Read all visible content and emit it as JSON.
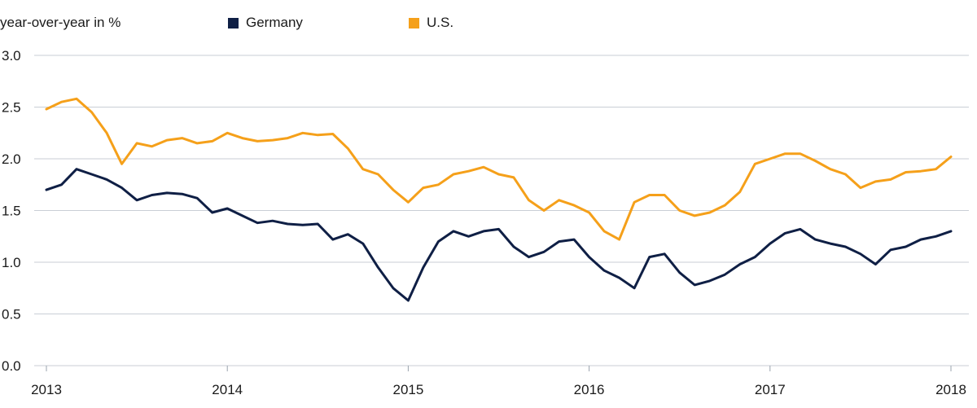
{
  "chart_data": {
    "type": "line",
    "ylabel": "year-over-year in %",
    "ylim": [
      0,
      3
    ],
    "yticks": [
      "0.0",
      "0.5",
      "1.0",
      "1.5",
      "2.0",
      "2.5",
      "3.0"
    ],
    "xticks": [
      "2013",
      "2014",
      "2015",
      "2016",
      "2017",
      "2018"
    ],
    "grid": "horizontal",
    "legend_position": "top",
    "series": [
      {
        "name": "Germany",
        "color": "#0f1f45",
        "x": [
          "2013-01",
          "2013-02",
          "2013-03",
          "2013-04",
          "2013-05",
          "2013-06",
          "2013-07",
          "2013-08",
          "2013-09",
          "2013-10",
          "2013-11",
          "2013-12",
          "2014-01",
          "2014-02",
          "2014-03",
          "2014-04",
          "2014-05",
          "2014-06",
          "2014-07",
          "2014-08",
          "2014-09",
          "2014-10",
          "2014-11",
          "2014-12",
          "2015-01",
          "2015-02",
          "2015-03",
          "2015-04",
          "2015-05",
          "2015-06",
          "2015-07",
          "2015-08",
          "2015-09",
          "2015-10",
          "2015-11",
          "2015-12",
          "2016-01",
          "2016-02",
          "2016-03",
          "2016-04",
          "2016-05",
          "2016-06",
          "2016-07",
          "2016-08",
          "2016-09",
          "2016-10",
          "2016-11",
          "2016-12",
          "2017-01",
          "2017-02",
          "2017-03",
          "2017-04",
          "2017-05",
          "2017-06",
          "2017-07",
          "2017-08",
          "2017-09",
          "2017-10",
          "2017-11",
          "2017-12",
          "2018-01"
        ],
        "values": [
          1.7,
          1.75,
          1.9,
          1.85,
          1.8,
          1.72,
          1.6,
          1.65,
          1.67,
          1.66,
          1.62,
          1.48,
          1.52,
          1.45,
          1.38,
          1.4,
          1.37,
          1.36,
          1.37,
          1.22,
          1.27,
          1.18,
          0.95,
          0.75,
          0.63,
          0.95,
          1.2,
          1.3,
          1.25,
          1.3,
          1.32,
          1.15,
          1.05,
          1.1,
          1.2,
          1.22,
          1.05,
          0.92,
          0.85,
          0.75,
          1.05,
          1.08,
          0.9,
          0.78,
          0.82,
          0.88,
          0.98,
          1.05,
          1.18,
          1.28,
          1.32,
          1.22,
          1.18,
          1.15,
          1.08,
          0.98,
          1.12,
          1.15,
          1.22,
          1.25,
          1.3
        ]
      },
      {
        "name": "U.S.",
        "color": "#f5a01a",
        "x": [
          "2013-01",
          "2013-02",
          "2013-03",
          "2013-04",
          "2013-05",
          "2013-06",
          "2013-07",
          "2013-08",
          "2013-09",
          "2013-10",
          "2013-11",
          "2013-12",
          "2014-01",
          "2014-02",
          "2014-03",
          "2014-04",
          "2014-05",
          "2014-06",
          "2014-07",
          "2014-08",
          "2014-09",
          "2014-10",
          "2014-11",
          "2014-12",
          "2015-01",
          "2015-02",
          "2015-03",
          "2015-04",
          "2015-05",
          "2015-06",
          "2015-07",
          "2015-08",
          "2015-09",
          "2015-10",
          "2015-11",
          "2015-12",
          "2016-01",
          "2016-02",
          "2016-03",
          "2016-04",
          "2016-05",
          "2016-06",
          "2016-07",
          "2016-08",
          "2016-09",
          "2016-10",
          "2016-11",
          "2016-12",
          "2017-01",
          "2017-02",
          "2017-03",
          "2017-04",
          "2017-05",
          "2017-06",
          "2017-07",
          "2017-08",
          "2017-09",
          "2017-10",
          "2017-11",
          "2017-12",
          "2018-01"
        ],
        "values": [
          2.48,
          2.55,
          2.58,
          2.45,
          2.25,
          1.95,
          2.15,
          2.12,
          2.18,
          2.2,
          2.15,
          2.17,
          2.25,
          2.2,
          2.17,
          2.18,
          2.2,
          2.25,
          2.23,
          2.24,
          2.1,
          1.9,
          1.85,
          1.7,
          1.58,
          1.72,
          1.75,
          1.85,
          1.88,
          1.92,
          1.85,
          1.82,
          1.6,
          1.5,
          1.6,
          1.55,
          1.48,
          1.3,
          1.22,
          1.58,
          1.65,
          1.65,
          1.5,
          1.45,
          1.48,
          1.55,
          1.68,
          1.95,
          2.0,
          2.05,
          2.05,
          1.98,
          1.9,
          1.85,
          1.72,
          1.78,
          1.8,
          1.87,
          1.88,
          1.9,
          2.02
        ]
      }
    ]
  }
}
